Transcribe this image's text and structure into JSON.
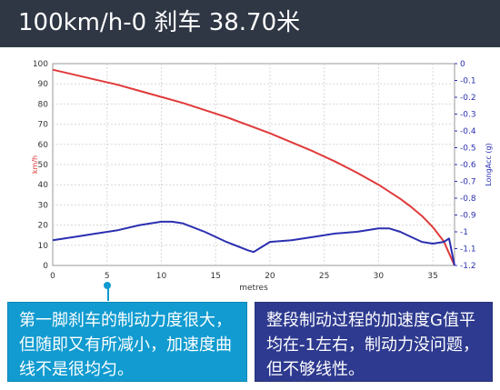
{
  "header": {
    "title": "100km/h-0 刹车 38.70米"
  },
  "chart_data": {
    "type": "line",
    "xlabel": "metres",
    "ylabel_left": "km/h",
    "ylabel_right": "LongAcc (g)",
    "xlim": [
      0,
      37
    ],
    "ylim_left": [
      0,
      100
    ],
    "ylim_right": [
      -1.2,
      0
    ],
    "x_ticks": [
      0,
      5,
      10,
      15,
      20,
      25,
      30,
      35
    ],
    "y_left_ticks": [
      0,
      10,
      20,
      30,
      40,
      50,
      60,
      70,
      80,
      90,
      100
    ],
    "y_right_ticks": [
      "0",
      "-0.1",
      "-0.2",
      "-0.3",
      "-0.4",
      "-0.5",
      "-0.6",
      "-0.7",
      "-0.8",
      "-0.9",
      "-1",
      "-1.1",
      "-1.2"
    ],
    "series": [
      {
        "name": "",
        "axis": "left",
        "color": "#e03a3a",
        "x": [
          0,
          2,
          4,
          6,
          8,
          10,
          12,
          14,
          16,
          18,
          20,
          22,
          24,
          26,
          28,
          30,
          32,
          33,
          34,
          35,
          36,
          36.5,
          37
        ],
        "y": [
          97,
          94.5,
          92,
          89.5,
          86.5,
          83.5,
          80.5,
          77,
          73.5,
          69.5,
          65.5,
          61,
          56.5,
          51.5,
          46,
          40,
          33,
          29,
          24.5,
          19,
          12,
          6,
          0
        ]
      },
      {
        "name": "",
        "axis": "right",
        "color": "#2b2fb0",
        "x": [
          0,
          2,
          4,
          6,
          8,
          10,
          11,
          12,
          14,
          16,
          18,
          18.5,
          19,
          20,
          22,
          24,
          26,
          28,
          30,
          31,
          32,
          33,
          34,
          35,
          36,
          36.5,
          37
        ],
        "y": [
          -1.05,
          -1.03,
          -1.01,
          -0.99,
          -0.96,
          -0.94,
          -0.94,
          -0.95,
          -1.0,
          -1.06,
          -1.11,
          -1.12,
          -1.1,
          -1.06,
          -1.05,
          -1.03,
          -1.01,
          -1.0,
          -0.98,
          -0.98,
          -1.0,
          -1.03,
          -1.06,
          -1.07,
          -1.06,
          -1.04,
          -1.2
        ]
      }
    ]
  },
  "callouts": {
    "left": "第一脚刹车的制动力度很大，但随即又有所减小，加速度曲线不是很均匀。",
    "right": "整段制动过程的加速度G值平均在-1左右，制动力没问题，但不够线性。"
  }
}
